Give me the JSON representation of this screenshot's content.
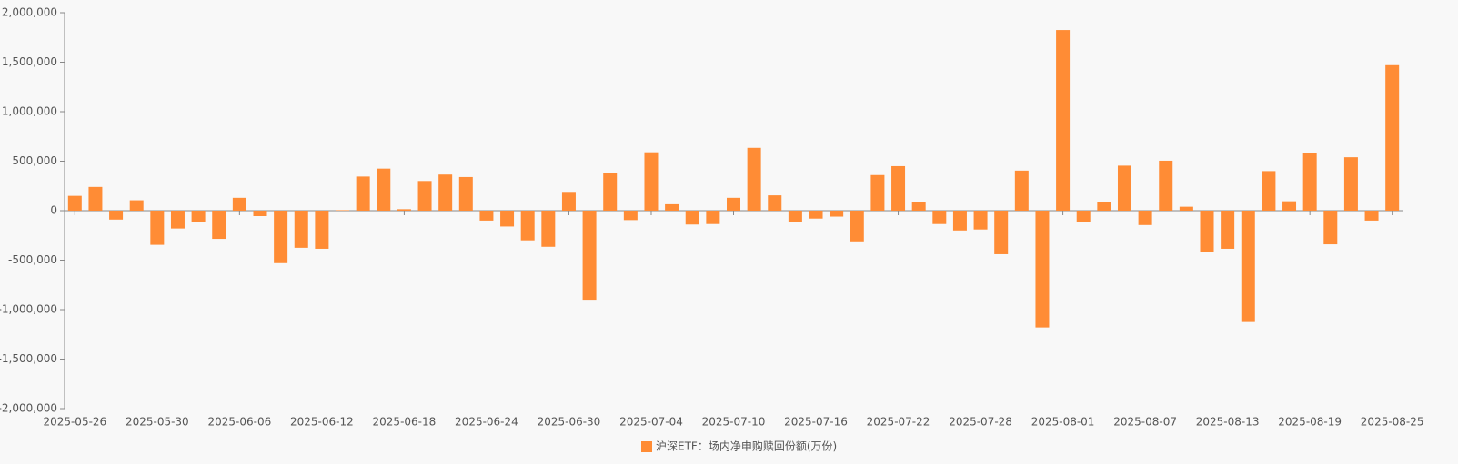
{
  "chart_data": {
    "type": "bar",
    "legend_position": "bottom",
    "categories": [
      "2025-05-26",
      null,
      null,
      null,
      "2025-05-30",
      null,
      null,
      null,
      "2025-06-06",
      null,
      null,
      null,
      "2025-06-12",
      null,
      null,
      null,
      "2025-06-18",
      null,
      null,
      null,
      "2025-06-24",
      null,
      null,
      null,
      "2025-06-30",
      null,
      null,
      null,
      "2025-07-04",
      null,
      null,
      null,
      "2025-07-10",
      null,
      null,
      null,
      "2025-07-16",
      null,
      null,
      null,
      "2025-07-22",
      null,
      null,
      null,
      "2025-07-28",
      null,
      null,
      null,
      "2025-08-01",
      null,
      null,
      null,
      "2025-08-07",
      null,
      null,
      null,
      "2025-08-13",
      null,
      null,
      null,
      "2025-08-19",
      null,
      null,
      null,
      "2025-08-25"
    ],
    "series": [
      {
        "name": "沪深ETF：场内净申购赎回份额(万份)",
        "color": "#ff8c35",
        "values": [
          150000,
          240000,
          -90000,
          105000,
          -345000,
          -180000,
          -110000,
          -285000,
          130000,
          -55000,
          -530000,
          -375000,
          -385000,
          5000,
          345000,
          425000,
          15000,
          300000,
          365000,
          340000,
          -100000,
          -160000,
          -300000,
          -365000,
          190000,
          -900000,
          380000,
          -95000,
          590000,
          65000,
          -140000,
          -135000,
          130000,
          635000,
          155000,
          -110000,
          -80000,
          -60000,
          -310000,
          360000,
          450000,
          90000,
          -135000,
          -200000,
          -190000,
          -440000,
          405000,
          -1180000,
          1825000,
          -115000,
          90000,
          455000,
          -145000,
          505000,
          40000,
          -420000,
          -385000,
          -1125000,
          400000,
          95000,
          585000,
          -340000,
          540000,
          -100000,
          1470000
        ]
      }
    ],
    "ylim": [
      -2000000,
      2000000
    ],
    "yticks": [
      {
        "value": -2000000,
        "label": "-2,000,000"
      },
      {
        "value": -1500000,
        "label": "-1,500,000"
      },
      {
        "value": -1000000,
        "label": "-1,000,000"
      },
      {
        "value": -500000,
        "label": "-500,000"
      },
      0,
      {
        "value": 500000,
        "label": "500,000"
      },
      {
        "value": 1000000,
        "label": "1,000,000"
      },
      {
        "value": 1500000,
        "label": "1,500,000"
      },
      {
        "value": 2000000,
        "label": "2,000,000"
      }
    ]
  }
}
